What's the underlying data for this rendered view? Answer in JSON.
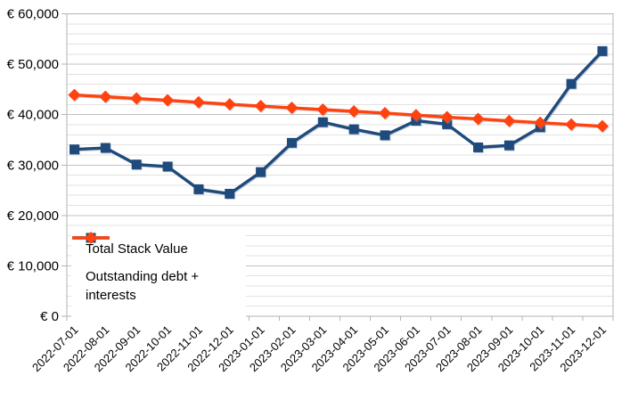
{
  "chart_data": {
    "type": "line",
    "categories": [
      "2022-07-01",
      "2022-08-01",
      "2022-09-01",
      "2022-10-01",
      "2022-11-01",
      "2022-12-01",
      "2023-01-01",
      "2023-02-01",
      "2023-03-01",
      "2023-04-01",
      "2023-05-01",
      "2023-06-01",
      "2023-07-01",
      "2023-08-01",
      "2023-09-01",
      "2023-10-01",
      "2023-11-01",
      "2023-12-01"
    ],
    "series": [
      {
        "name": "Total Stack Value",
        "marker": "square",
        "color": "#1F4A7C",
        "values": [
          33100,
          33400,
          30100,
          29700,
          25200,
          24300,
          28600,
          34400,
          38500,
          37100,
          35900,
          38800,
          38100,
          33500,
          33900,
          37500,
          46100,
          52600
        ]
      },
      {
        "name": "Outstanding debt + interests",
        "marker": "diamond",
        "color": "#FF420E",
        "values": [
          43900,
          43550,
          43200,
          42850,
          42450,
          42050,
          41700,
          41350,
          41000,
          40650,
          40300,
          39900,
          39500,
          39150,
          38750,
          38400,
          38050,
          37700
        ]
      }
    ],
    "title": "",
    "xlabel": "",
    "ylabel": "",
    "ylim": [
      0,
      60000
    ],
    "y_major_step": 10000,
    "y_minor_step": 2000,
    "y_tick_labels": [
      "€ 0",
      "€ 10,000",
      "€ 20,000",
      "€ 30,000",
      "€ 40,000",
      "€ 50,000",
      "€ 60,000"
    ],
    "grid": "major+minor horizontal",
    "legend_position": "inside bottom-left",
    "background_color": "#ffffff",
    "grid_minor_color": "#e2e2e2",
    "grid_major_color": "#c3c3c3"
  }
}
